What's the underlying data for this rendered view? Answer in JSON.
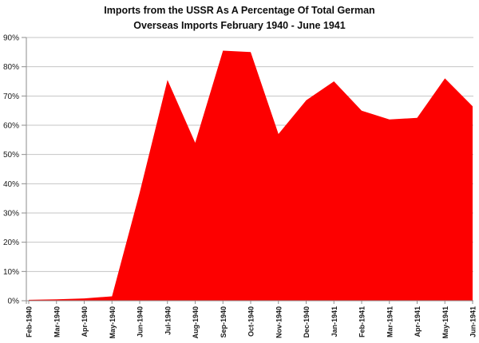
{
  "title": {
    "line1": "Imports from the USSR As A Percentage Of Total German",
    "line2": "Overseas Imports February 1940 - June 1941"
  },
  "chart_data": {
    "type": "area",
    "title": "Imports from the USSR As A Percentage Of Total German Overseas Imports February 1940 - June 1941",
    "categories": [
      "Feb-1940",
      "Mar-1940",
      "Apr-1940",
      "May-1940",
      "Jun-1940",
      "Jul-1940",
      "Aug-1940",
      "Sep-1940",
      "Oct-1940",
      "Nov-1940",
      "Dec-1940",
      "Jan-1941",
      "Feb-1941",
      "Mar-1941",
      "Apr-1941",
      "May-1941",
      "Jun-1941"
    ],
    "values": [
      0.3,
      0.5,
      0.8,
      1.5,
      37,
      75.5,
      54,
      85.5,
      85,
      57,
      68.5,
      75,
      65,
      62,
      62.5,
      76,
      66.5
    ],
    "xlabel": "",
    "ylabel": "",
    "ylim": [
      0,
      90
    ],
    "ytick_step": 10,
    "y_tick_labels": [
      "0%",
      "10%",
      "20%",
      "30%",
      "40%",
      "50%",
      "60%",
      "70%",
      "80%",
      "90%"
    ],
    "grid": true,
    "legend": "none",
    "colors": {
      "fill": "#fd0000",
      "gridline": "#c4c4c4",
      "axis": "#8e8e8e",
      "text": "#1a1a1a",
      "background": "#ffffff"
    }
  }
}
